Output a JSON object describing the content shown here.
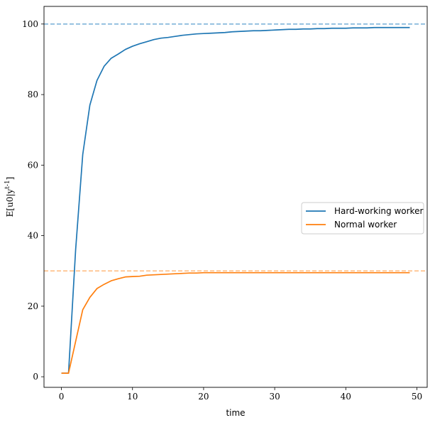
{
  "chart_data": {
    "type": "line",
    "title": "",
    "xlabel": "time",
    "ylabel": "E[u0|y^{t-1}]",
    "xlim": [
      -2.45,
      51.45
    ],
    "ylim": [
      -3,
      105
    ],
    "xticks": [
      0,
      10,
      20,
      30,
      40,
      50
    ],
    "yticks": [
      0,
      20,
      40,
      60,
      80,
      100
    ],
    "grid": false,
    "legend_position": "center-right",
    "x": [
      0,
      1,
      2,
      3,
      4,
      5,
      6,
      7,
      8,
      9,
      10,
      11,
      12,
      13,
      14,
      15,
      16,
      17,
      18,
      19,
      20,
      21,
      22,
      23,
      24,
      25,
      26,
      27,
      28,
      29,
      30,
      31,
      32,
      33,
      34,
      35,
      36,
      37,
      38,
      39,
      40,
      41,
      42,
      43,
      44,
      45,
      46,
      47,
      48,
      49
    ],
    "series": [
      {
        "name": "Hard-working worker",
        "color": "#1f77b4",
        "values": [
          1,
          1,
          36,
          63,
          77,
          84,
          88,
          90.3,
          91.5,
          92.8,
          93.7,
          94.4,
          95,
          95.6,
          96,
          96.2,
          96.5,
          96.8,
          97,
          97.2,
          97.3,
          97.4,
          97.5,
          97.6,
          97.8,
          97.9,
          98,
          98.1,
          98.1,
          98.2,
          98.3,
          98.4,
          98.5,
          98.5,
          98.6,
          98.6,
          98.7,
          98.7,
          98.8,
          98.8,
          98.8,
          98.9,
          98.9,
          98.9,
          99,
          99,
          99,
          99,
          99,
          99
        ]
      },
      {
        "name": "Normal worker",
        "color": "#ff7f0e",
        "values": [
          1,
          1,
          10,
          19,
          22.5,
          25,
          26.2,
          27.2,
          27.8,
          28.3,
          28.4,
          28.5,
          28.8,
          28.9,
          29,
          29.1,
          29.2,
          29.3,
          29.4,
          29.4,
          29.5,
          29.5,
          29.5,
          29.5,
          29.5,
          29.5,
          29.5,
          29.5,
          29.5,
          29.5,
          29.5,
          29.5,
          29.5,
          29.5,
          29.5,
          29.5,
          29.5,
          29.5,
          29.5,
          29.5,
          29.5,
          29.5,
          29.5,
          29.5,
          29.5,
          29.5,
          29.5,
          29.5,
          29.5,
          29.5
        ]
      }
    ],
    "reference_lines": [
      {
        "y": 100,
        "color": "#7fb3d9",
        "style": "dashed"
      },
      {
        "y": 30,
        "color": "#ffbf86",
        "style": "dashed"
      }
    ]
  }
}
